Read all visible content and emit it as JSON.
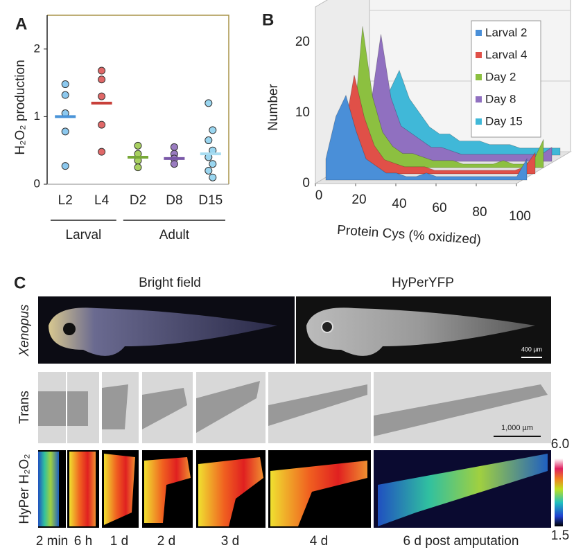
{
  "chart_data": [
    {
      "type": "strip",
      "panel": "A",
      "ylabel": "H₂O₂ production",
      "categories": [
        "L2",
        "L4",
        "D2",
        "D8",
        "D15"
      ],
      "groups": [
        "Larval",
        "Adult"
      ],
      "colors": [
        "#8cc8ee",
        "#e06868",
        "#a8d060",
        "#9a7cc0",
        "#9ad6f0"
      ],
      "mean_colors": [
        "#4a94d8",
        "#c8403a",
        "#78a838",
        "#7a58a8",
        "#a8dcf0"
      ],
      "values": [
        [
          1.48,
          1.32,
          1.05,
          0.78,
          0.27
        ],
        [
          1.68,
          1.55,
          1.3,
          0.88,
          0.48
        ],
        [
          0.57,
          0.45,
          0.35,
          0.25
        ],
        [
          0.55,
          0.45,
          0.38,
          0.3
        ],
        [
          1.2,
          0.8,
          0.65,
          0.5,
          0.4,
          0.3,
          0.2,
          0.1
        ]
      ],
      "means": [
        1.0,
        1.2,
        0.4,
        0.38,
        0.45
      ],
      "ylim": [
        0,
        2.5
      ],
      "yticks": [
        0,
        1,
        2
      ]
    },
    {
      "type": "area3d",
      "panel": "B",
      "ylabel": "Number",
      "xlabel": "Protein Cys (% oxidized)",
      "x": [
        0,
        5,
        10,
        15,
        20,
        25,
        30,
        35,
        40,
        45,
        50,
        55,
        60,
        65,
        70,
        75,
        80,
        85,
        90,
        95,
        100
      ],
      "series": [
        {
          "name": "Larval 2",
          "color": "#4a8fd8",
          "values": [
            3,
            9,
            12,
            7,
            3,
            2,
            1,
            1,
            0.5,
            0.5,
            1,
            0.5,
            0.5,
            0.5,
            0.5,
            0.5,
            0.5,
            0.5,
            0.5,
            0.5,
            3
          ]
        },
        {
          "name": "Larval 4",
          "color": "#e05048",
          "values": [
            2,
            6,
            14,
            8,
            4,
            2,
            1.5,
            1,
            1,
            1,
            0.5,
            0.5,
            0.5,
            0.5,
            0.5,
            0.5,
            0.5,
            0.5,
            0.5,
            1,
            3
          ]
        },
        {
          "name": "Day 2",
          "color": "#8cc040",
          "values": [
            1,
            4,
            20,
            10,
            5,
            3,
            2,
            2,
            1.5,
            1,
            1,
            1,
            0.5,
            0.5,
            0.5,
            0.5,
            1,
            0.5,
            0.5,
            1,
            4
          ]
        },
        {
          "name": "Day 8",
          "color": "#9070c0",
          "values": [
            1,
            3,
            8,
            18,
            9,
            5,
            4,
            3,
            2,
            2,
            1.5,
            1,
            1,
            1,
            1,
            1,
            1,
            1,
            1,
            1,
            2
          ]
        },
        {
          "name": "Day 15",
          "color": "#40b8d8",
          "values": [
            1,
            2,
            5,
            9,
            12,
            8,
            6,
            4,
            3,
            3,
            2,
            2,
            2,
            1.5,
            1.5,
            1.5,
            1,
            1,
            1,
            1,
            1
          ]
        }
      ],
      "xlim": [
        0,
        100
      ],
      "xticks": [
        0,
        20,
        40,
        60,
        80,
        100
      ],
      "ylim": [
        0,
        25
      ],
      "yticks": [
        0,
        10,
        20
      ],
      "legend": "upper right"
    }
  ],
  "panel_c": {
    "label": "C",
    "columns": [
      "Bright field",
      "HyPerYFP"
    ],
    "rows": [
      "Xenopus",
      "Trans",
      "HyPer H₂O₂"
    ],
    "scale_bars": [
      "400 µm",
      "1,000 µm"
    ],
    "colorbar": [
      "6.0",
      "1.5"
    ],
    "times": [
      "2 min",
      "6 h",
      "1 d",
      "2 d",
      "3 d",
      "4 d",
      "6 d post amputation"
    ]
  }
}
